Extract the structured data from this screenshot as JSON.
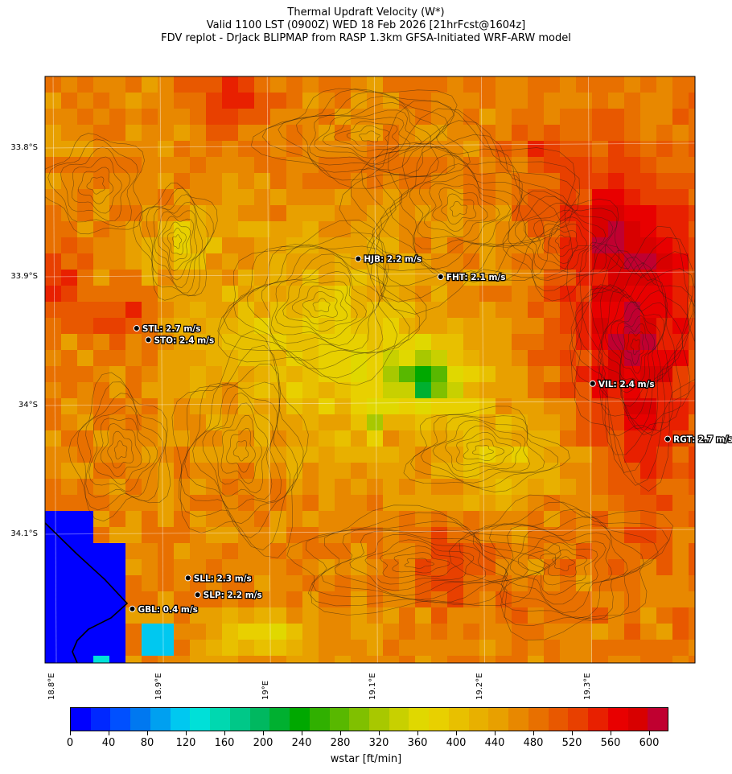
{
  "title": {
    "line1": "Thermal Updraft Velocity (W*)",
    "line2": "Valid 1100 LST (0900Z) WED 18 Feb 2026 [21hrFcst@1604z]",
    "line3": "FDV replot - DrJack BLIPMAP from RASP 1.3km GFSA-Initiated WRF-ARW model"
  },
  "map": {
    "lat_labels": [
      "33.8°S",
      "33.9°S",
      "34°S",
      "34.1°S"
    ],
    "lon_labels": [
      "18.8°E",
      "18.9°E",
      "19°E",
      "19.1°E",
      "19.2°E",
      "19.3°E"
    ],
    "stations": [
      {
        "id": "HJB",
        "label": "HJB: 2.2 m/s",
        "lon": 19.085,
        "lat": -33.886
      },
      {
        "id": "FHT",
        "label": "FHT: 2.1 m/s",
        "lon": 19.162,
        "lat": -33.9
      },
      {
        "id": "STL",
        "label": "STL: 2.7 m/s",
        "lon": 18.878,
        "lat": -33.94
      },
      {
        "id": "STO",
        "label": "STO: 2.4 m/s",
        "lon": 18.889,
        "lat": -33.949
      },
      {
        "id": "VIL",
        "label": "VIL: 2.4 m/s",
        "lon": 19.304,
        "lat": -33.983
      },
      {
        "id": "RGT",
        "label": "RGT: 2.7 m/s",
        "lon": 19.374,
        "lat": -34.026
      },
      {
        "id": "SLL",
        "label": "SLL: 2.3 m/s",
        "lon": 18.926,
        "lat": -34.134
      },
      {
        "id": "SLP",
        "label": "SLP: 2.2 m/s",
        "lon": 18.935,
        "lat": -34.147
      },
      {
        "id": "GBL",
        "label": "GBL: 0.4 m/s",
        "lon": 18.874,
        "lat": -34.158
      }
    ]
  },
  "colorbar": {
    "label": "wstar [ft/min]",
    "ticks": [
      "0",
      "40",
      "80",
      "120",
      "160",
      "200",
      "240",
      "280",
      "320",
      "360",
      "400",
      "440",
      "480",
      "520",
      "560",
      "600"
    ],
    "colors": [
      "#0000ff",
      "#0028ff",
      "#0050ff",
      "#0078f0",
      "#00a0f0",
      "#00c8f0",
      "#00e0d8",
      "#00d8b0",
      "#00c888",
      "#00b860",
      "#00b030",
      "#00a800",
      "#30b000",
      "#58b800",
      "#80c000",
      "#a8c800",
      "#c8d000",
      "#e0d800",
      "#e8d000",
      "#e8c000",
      "#e8b000",
      "#e8a000",
      "#e88800",
      "#e87000",
      "#e85800",
      "#e84000",
      "#e82000",
      "#e80000",
      "#d80000",
      "#c00030"
    ],
    "min": 0,
    "max": 620
  }
}
